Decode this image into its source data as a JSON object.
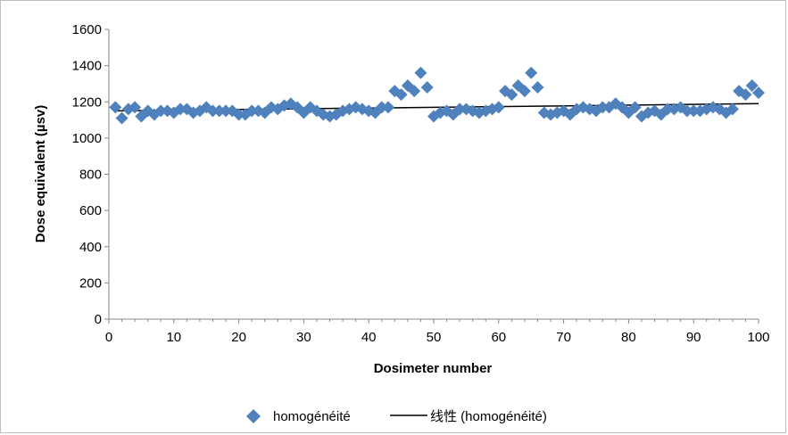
{
  "chart_data": {
    "type": "scatter",
    "xlabel": "Dosimeter number",
    "ylabel": "Dose equivalent (µsv)",
    "xlim": [
      0,
      100
    ],
    "ylim": [
      0,
      1600
    ],
    "xticks": [
      0,
      10,
      20,
      30,
      40,
      50,
      60,
      70,
      80,
      90,
      100
    ],
    "yticks": [
      0,
      200,
      400,
      600,
      800,
      1000,
      1200,
      1400,
      1600
    ],
    "grid": false,
    "legend_position": "bottom",
    "series": [
      {
        "name": "homogénéité",
        "kind": "scatter",
        "marker": "diamond",
        "color": "#4f81bd",
        "x": [
          1,
          2,
          3,
          4,
          5,
          6,
          7,
          8,
          9,
          10,
          11,
          12,
          13,
          14,
          15,
          16,
          17,
          18,
          19,
          20,
          21,
          22,
          23,
          24,
          25,
          26,
          27,
          28,
          29,
          30,
          31,
          32,
          33,
          34,
          35,
          36,
          37,
          38,
          39,
          40,
          41,
          42,
          43,
          44,
          45,
          46,
          47,
          48,
          49,
          50,
          51,
          52,
          53,
          54,
          55,
          56,
          57,
          58,
          59,
          60,
          61,
          62,
          63,
          64,
          65,
          66,
          67,
          68,
          69,
          70,
          71,
          72,
          73,
          74,
          75,
          76,
          77,
          78,
          79,
          80,
          81,
          82,
          83,
          84,
          85,
          86,
          87,
          88,
          89,
          90,
          91,
          92,
          93,
          94,
          95,
          96,
          97,
          98,
          99,
          100
        ],
        "values": [
          1170,
          1110,
          1160,
          1170,
          1120,
          1150,
          1130,
          1150,
          1150,
          1140,
          1160,
          1160,
          1140,
          1150,
          1170,
          1150,
          1150,
          1150,
          1150,
          1130,
          1130,
          1150,
          1150,
          1140,
          1170,
          1160,
          1180,
          1190,
          1170,
          1140,
          1170,
          1150,
          1130,
          1120,
          1130,
          1150,
          1160,
          1170,
          1160,
          1150,
          1140,
          1170,
          1170,
          1260,
          1240,
          1290,
          1260,
          1360,
          1280,
          1120,
          1140,
          1150,
          1130,
          1160,
          1160,
          1150,
          1140,
          1150,
          1160,
          1170,
          1260,
          1240,
          1290,
          1260,
          1360,
          1280,
          1140,
          1130,
          1140,
          1150,
          1130,
          1160,
          1170,
          1160,
          1150,
          1170,
          1170,
          1190,
          1170,
          1140,
          1170,
          1120,
          1140,
          1150,
          1130,
          1160,
          1160,
          1170,
          1150,
          1150,
          1150,
          1160,
          1170,
          1160,
          1140,
          1160,
          1260,
          1240,
          1290,
          1250
        ]
      },
      {
        "name": "线性 (homogénéité)",
        "kind": "line",
        "color": "#000000",
        "x": [
          1,
          100
        ],
        "values": [
          1150,
          1190
        ]
      }
    ]
  }
}
